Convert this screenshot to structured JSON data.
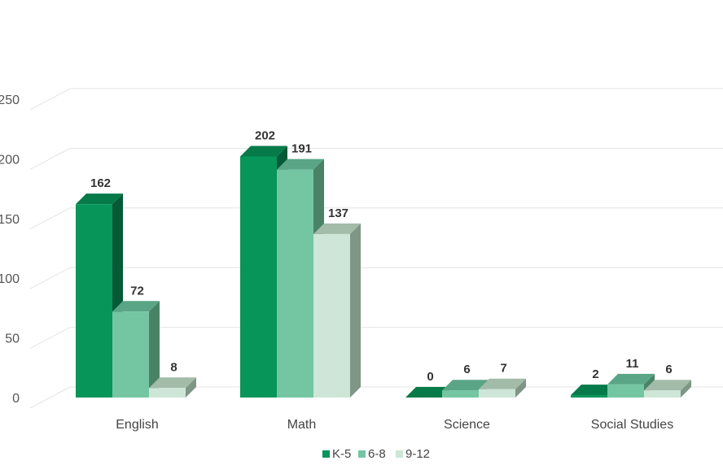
{
  "chart_data": {
    "type": "bar",
    "style": "3d-clustered-column",
    "categories": [
      "English",
      "Math",
      "Science",
      "Social Studies"
    ],
    "series": [
      {
        "name": "K-5",
        "values": [
          162,
          202,
          0,
          2
        ],
        "color": "#07955a",
        "side": "#045a36",
        "top": "#067a49"
      },
      {
        "name": "6-8",
        "values": [
          72,
          191,
          6,
          11
        ],
        "color": "#74c6a3",
        "side": "#4a8266",
        "top": "#5aa586"
      },
      {
        "name": "9-12",
        "values": [
          8,
          137,
          7,
          6
        ],
        "color": "#cde6d7",
        "side": "#7f9686",
        "top": "#a3bba9"
      }
    ],
    "ylim": [
      0,
      250
    ],
    "yticks": [
      0,
      50,
      100,
      150,
      200,
      250
    ],
    "grid": true,
    "legend_position": "bottom-center",
    "data_labels": true,
    "title": "",
    "xlabel": "",
    "ylabel": ""
  }
}
